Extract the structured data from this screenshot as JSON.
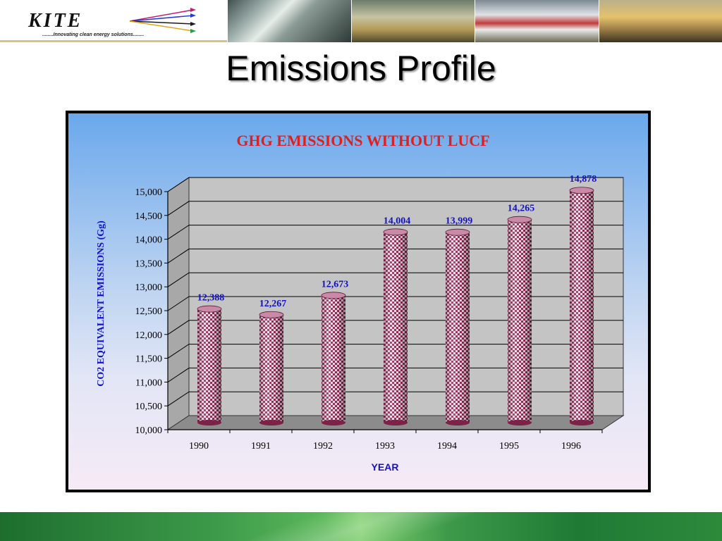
{
  "header": {
    "logo_name": "KITE",
    "logo_tagline": "........Innovating clean energy solutions........"
  },
  "slide": {
    "title": "Emissions Profile"
  },
  "colors": {
    "chart_title": "#e0201e",
    "axis_title": "#1212c8",
    "data_label": "#1212c8",
    "bar_pattern": "#9b2c5c",
    "plot_wall": "#c4c4c4",
    "plot_floor": "#8c8c8c"
  },
  "chart_data": {
    "type": "bar",
    "title": "GHG EMISSIONS WITHOUT LUCF",
    "xlabel": "YEAR",
    "ylabel": "CO2 EQUIVALENT EMISSIONS (Gg)",
    "categories": [
      "1990",
      "1991",
      "1992",
      "1993",
      "1994",
      "1995",
      "1996"
    ],
    "values": [
      12388,
      12267,
      12673,
      14004,
      13999,
      14265,
      14878
    ],
    "data_labels": [
      "12,388",
      "12,267",
      "12,673",
      "14,004",
      "13,999",
      "14,265",
      "14,878"
    ],
    "ylim": [
      10000,
      15000
    ],
    "yticks": [
      "10,000",
      "10,500",
      "11,000",
      "11,500",
      "12,000",
      "12,500",
      "13,000",
      "13,500",
      "14,000",
      "14,500",
      "15,000"
    ],
    "grid": true,
    "legend": "none",
    "style": "3d-cylinder"
  }
}
